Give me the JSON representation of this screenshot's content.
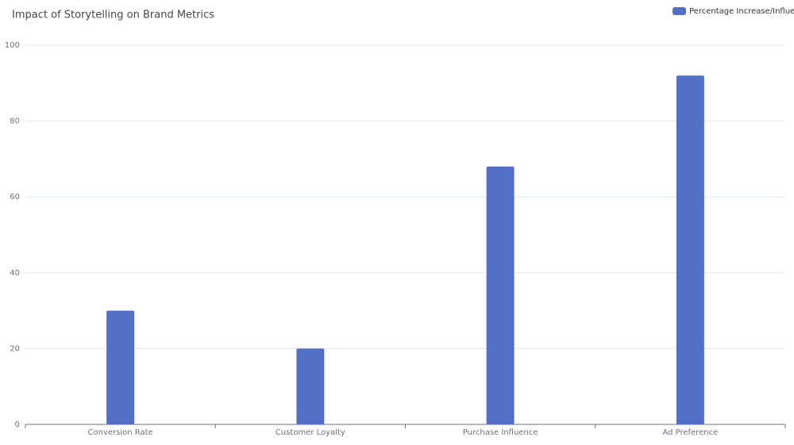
{
  "chart_data": {
    "type": "bar",
    "title": "Impact of Storytelling on Brand Metrics",
    "categories": [
      "Conversion Rate",
      "Customer Loyalty",
      "Purchase Influence",
      "Ad Preference"
    ],
    "series": [
      {
        "name": "Percentage Increase/Influence",
        "color": "#5470c6",
        "values": [
          30,
          20,
          68,
          92
        ]
      }
    ],
    "ylim": [
      0,
      100
    ],
    "yticks": [
      0,
      20,
      40,
      60,
      80,
      100
    ],
    "grid": true,
    "legend": "top-right"
  }
}
